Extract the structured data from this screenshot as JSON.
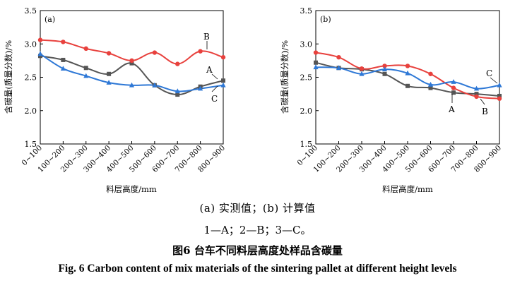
{
  "chart_data": [
    {
      "type": "line",
      "panel_label": "(a)",
      "title": "",
      "xlabel": "料层高度/mm",
      "ylabel": "含碳量(质量分数)/%",
      "ylim": [
        1.5,
        3.5
      ],
      "yticks": [
        1.5,
        2.0,
        2.5,
        3.0,
        3.5
      ],
      "categories": [
        "0~100",
        "100~200",
        "200~300",
        "300~400",
        "400~500",
        "500~600",
        "600~700",
        "700~800",
        "800~900"
      ],
      "series": [
        {
          "name": "A",
          "color": "#555555",
          "marker": "square",
          "values": [
            2.82,
            2.76,
            2.64,
            2.55,
            2.71,
            2.38,
            2.24,
            2.36,
            2.45
          ]
        },
        {
          "name": "B",
          "color": "#e8413d",
          "marker": "circle",
          "values": [
            3.06,
            3.03,
            2.93,
            2.86,
            2.75,
            2.87,
            2.7,
            2.89,
            2.8
          ]
        },
        {
          "name": "C",
          "color": "#2e78d6",
          "marker": "triangle",
          "values": [
            2.85,
            2.63,
            2.52,
            2.42,
            2.38,
            2.38,
            2.29,
            2.33,
            2.38
          ]
        }
      ],
      "annotations": [
        "B",
        "A",
        "C"
      ],
      "grid": false
    },
    {
      "type": "line",
      "panel_label": "(b)",
      "title": "",
      "xlabel": "料层高度/mm",
      "ylabel": "含碳量(质量分数)/%",
      "ylim": [
        1.5,
        3.5
      ],
      "yticks": [
        1.5,
        2.0,
        2.5,
        3.0,
        3.5
      ],
      "categories": [
        "0~100",
        "100~200",
        "200~300",
        "300~400",
        "400~500",
        "500~600",
        "600~700",
        "700~800",
        "800~900"
      ],
      "series": [
        {
          "name": "A",
          "color": "#555555",
          "marker": "square",
          "values": [
            2.72,
            2.64,
            2.62,
            2.55,
            2.37,
            2.34,
            2.27,
            2.25,
            2.22
          ]
        },
        {
          "name": "B",
          "color": "#e8413d",
          "marker": "circle",
          "values": [
            2.87,
            2.8,
            2.63,
            2.67,
            2.67,
            2.55,
            2.34,
            2.21,
            2.18
          ]
        },
        {
          "name": "C",
          "color": "#2e78d6",
          "marker": "triangle",
          "values": [
            2.65,
            2.64,
            2.55,
            2.62,
            2.56,
            2.39,
            2.43,
            2.33,
            2.38
          ]
        }
      ],
      "annotations": [
        "C",
        "A",
        "B"
      ],
      "grid": false
    }
  ],
  "captions": {
    "subpanels": "(a) 实测值；(b) 计算值",
    "legend": "1—A；2—B；3—C。",
    "figure_cn": "图6    台车不同料层高度处样品含碳量",
    "figure_en": "Fig. 6    Carbon content of mix materials of the sintering pallet at different height levels"
  }
}
